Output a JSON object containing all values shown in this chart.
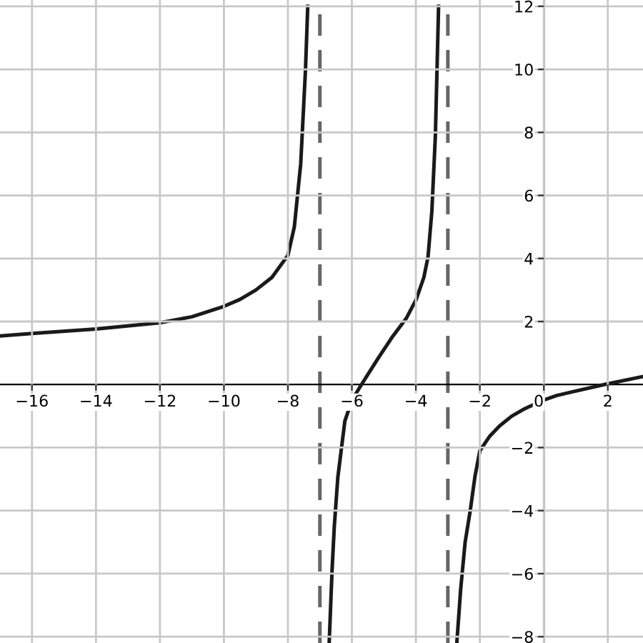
{
  "chart_data": {
    "type": "line",
    "series": [
      {
        "color": "#1a1a1a",
        "x": [
          -17,
          -16,
          -14,
          -12,
          -11,
          -10,
          -9.5,
          -9,
          -8.5,
          -8,
          -7.8,
          -7.6,
          -7.45,
          -7.38
        ],
        "values": [
          1.54,
          1.62,
          1.76,
          1.96,
          2.15,
          2.48,
          2.7,
          3.0,
          3.4,
          4.1,
          5,
          7,
          10,
          12
        ]
      },
      {
        "color": "#1a1a1a",
        "x": [
          -6.71,
          -6.62,
          -6.55,
          -6.44,
          -6.22,
          -6.0,
          -5.7,
          -5.2,
          -4.73,
          -4.3,
          -3.99,
          -3.75,
          -3.62,
          -3.5,
          -3.39,
          -3.29
        ],
        "values": [
          -8.2,
          -5.9,
          -4.5,
          -2.95,
          -1.16,
          -0.5,
          0,
          0.8,
          1.52,
          2.1,
          2.7,
          3.4,
          4.05,
          5.5,
          7.9,
          12
        ]
      },
      {
        "color": "#1a1a1a",
        "x": [
          -2.72,
          -2.6,
          -2.46,
          -2.3,
          -2.15,
          -2.0,
          -1.7,
          -1.38,
          -1.0,
          -0.64,
          0,
          0.4,
          0.85,
          1.89,
          3.08
        ],
        "values": [
          -8.2,
          -6.5,
          -5.0,
          -4.0,
          -2.9,
          -2.1,
          -1.65,
          -1.31,
          -1.0,
          -0.79,
          -0.49,
          -0.35,
          -0.24,
          0,
          0.25
        ]
      }
    ],
    "ref_lines": [
      {
        "axis": "x",
        "value": -7,
        "color": "#666666",
        "line_style": "dashed"
      },
      {
        "axis": "x",
        "value": -3,
        "color": "#666666",
        "line_style": "dashed"
      }
    ],
    "xlim": [
      -17,
      3.1
    ],
    "ylim": [
      -8.2,
      12.2
    ],
    "xticks": [
      {
        "value": -16,
        "label": "−16"
      },
      {
        "value": -14,
        "label": "−14"
      },
      {
        "value": -12,
        "label": "−12"
      },
      {
        "value": -10,
        "label": "−10"
      },
      {
        "value": -8,
        "label": "−8"
      },
      {
        "value": -6,
        "label": "−6"
      },
      {
        "value": -4,
        "label": "−4"
      },
      {
        "value": -2,
        "label": "−2"
      },
      0,
      2
    ],
    "yticks": [
      {
        "value": -8,
        "label": "−8"
      },
      {
        "value": -6,
        "label": "−6"
      },
      {
        "value": -4,
        "label": "−4"
      },
      {
        "value": -2,
        "label": "−2"
      },
      2,
      4,
      6,
      8,
      10,
      12
    ],
    "grid": true,
    "line_style": "solid",
    "marker": "none"
  }
}
